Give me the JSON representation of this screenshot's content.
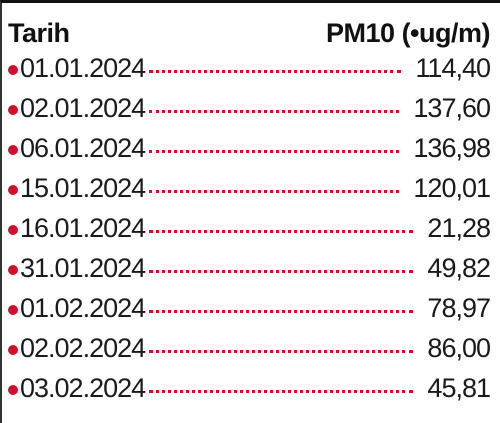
{
  "table": {
    "header": [
      "Tarih",
      "PM10 (•ug/m)"
    ],
    "rows": [
      [
        "01.01.2024",
        "114,40"
      ],
      [
        "02.01.2024",
        "137,60"
      ],
      [
        "06.01.2024",
        "136,98"
      ],
      [
        "15.01.2024",
        "120,01"
      ],
      [
        "16.01.2024",
        "21,28"
      ],
      [
        "31.01.2024",
        "49,82"
      ],
      [
        "01.02.2024",
        "78,97"
      ],
      [
        "02.02.2024",
        "86,00"
      ],
      [
        "03.02.2024",
        "45,81"
      ]
    ]
  }
}
